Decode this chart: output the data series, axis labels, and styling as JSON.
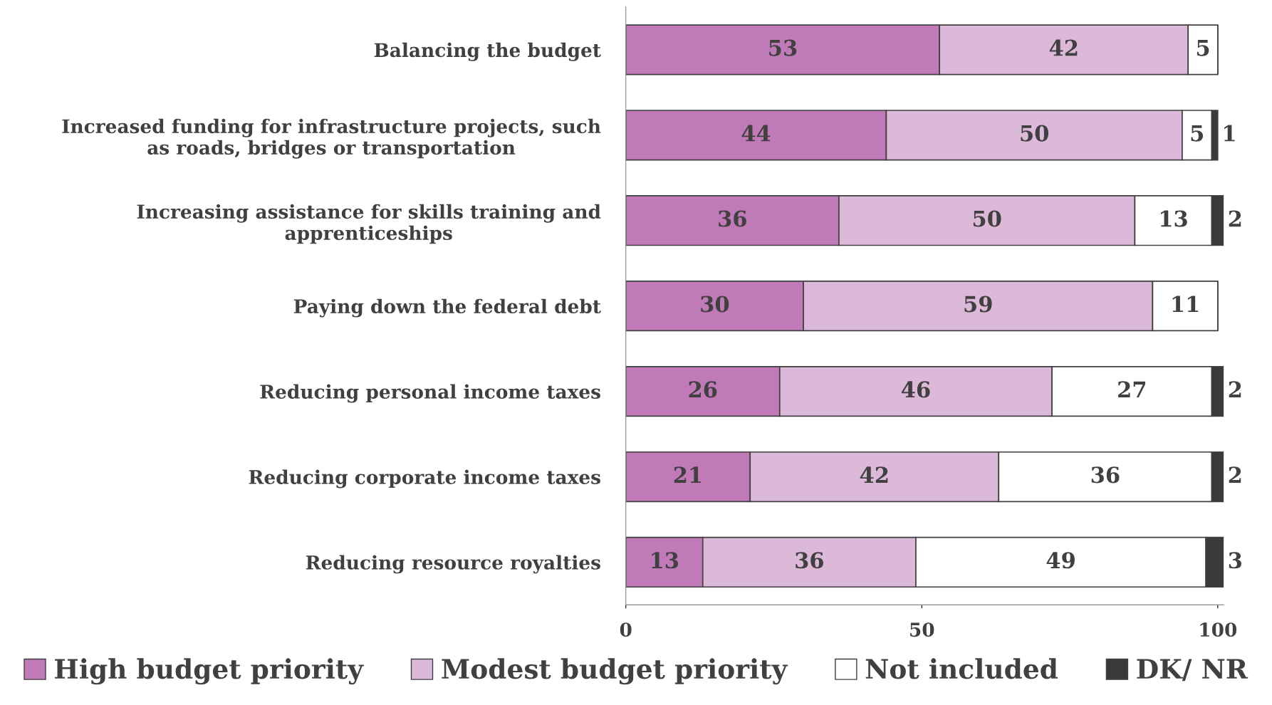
{
  "chart_data": {
    "type": "bar",
    "orientation": "horizontal",
    "stacked": true,
    "categories": [
      "Balancing the budget",
      "Increased funding for infrastructure projects, such\nas roads, bridges or transportation",
      "Increasing assistance for skills training and\napprenticeships",
      "Paying down the federal debt",
      "Reducing personal income taxes",
      "Reducing corporate income taxes",
      "Reducing resource royalties"
    ],
    "series": [
      {
        "name": "High budget priority",
        "color": "#c07ab8",
        "values": [
          53,
          44,
          36,
          30,
          26,
          21,
          13
        ],
        "value_labels": [
          "53",
          "44",
          "36",
          "30",
          "26",
          "21",
          "13"
        ]
      },
      {
        "name": "Modest budget priority",
        "color": "#dcb9d8",
        "values": [
          42,
          50,
          50,
          59,
          46,
          42,
          36
        ],
        "value_labels": [
          "42",
          "50",
          "50",
          "59",
          "46",
          "42",
          "36"
        ]
      },
      {
        "name": "Not included",
        "color": "#ffffff",
        "values": [
          5,
          5,
          13,
          11,
          27,
          36,
          49
        ],
        "value_labels": [
          "5",
          "5",
          "13",
          "11",
          "27",
          "36",
          "49"
        ]
      },
      {
        "name": "DK/ NR",
        "color": "#3a3a3a",
        "values": [
          0,
          1,
          2,
          0,
          2,
          2,
          3
        ],
        "value_labels": [
          null,
          "1",
          "2",
          null,
          "2",
          "2",
          "3"
        ]
      }
    ],
    "xlim": [
      0,
      101
    ],
    "xticks": [
      0,
      50,
      100
    ],
    "grid": false,
    "legend": "bottom"
  }
}
